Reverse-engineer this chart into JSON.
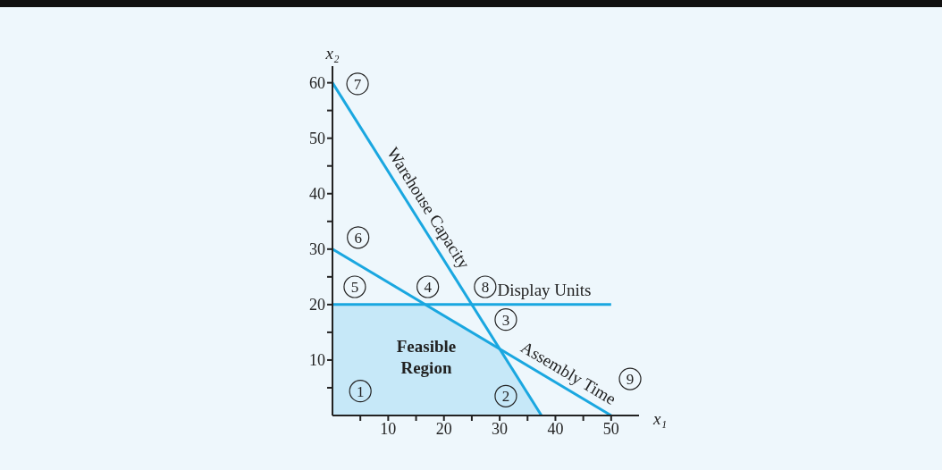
{
  "chart_data": {
    "type": "line",
    "xlabel": "x₁",
    "ylabel": "x₂",
    "xlim": [
      0,
      55
    ],
    "ylim": [
      0,
      63
    ],
    "xticks": [
      {
        "value": 5,
        "label": null
      },
      10,
      {
        "value": 15,
        "label": null
      },
      20,
      {
        "value": 25,
        "label": null
      },
      30,
      {
        "value": 35,
        "label": null
      },
      40,
      {
        "value": 45,
        "label": null
      },
      50
    ],
    "yticks": [
      {
        "value": 5,
        "label": null
      },
      10,
      {
        "value": 15,
        "label": null
      },
      20,
      {
        "value": 25,
        "label": null
      },
      30,
      {
        "value": 35,
        "label": null
      },
      40,
      {
        "value": 45,
        "label": null
      },
      50,
      {
        "value": 55,
        "label": null
      },
      60
    ],
    "marker": "none",
    "line_style": "solid",
    "series": [
      {
        "name": "Feasible Region",
        "type": "area",
        "color": "#c6e8f8",
        "x": [
          0,
          16.67,
          30,
          37.5
        ],
        "values": [
          20,
          20,
          12,
          0
        ]
      },
      {
        "name": "Warehouse Capacity",
        "color": "#1aa7e0",
        "x": [
          0,
          37.5
        ],
        "values": [
          60,
          0
        ]
      },
      {
        "name": "Assembly Time",
        "color": "#1aa7e0",
        "x": [
          0,
          50
        ],
        "values": [
          30,
          0
        ]
      },
      {
        "name": "Display Units",
        "color": "#1aa7e0",
        "x": [
          0,
          50
        ],
        "values": [
          20,
          20
        ]
      }
    ],
    "annotations": [
      {
        "text": "1",
        "x": 5,
        "y": 4.4
      },
      {
        "text": "2",
        "x": 31.1,
        "y": 3.5
      },
      {
        "text": "3",
        "x": 31.1,
        "y": 17.3
      },
      {
        "text": "4",
        "x": 17.1,
        "y": 23.2
      },
      {
        "text": "5",
        "x": 4,
        "y": 23.2
      },
      {
        "text": "6",
        "x": 4.6,
        "y": 32.1
      },
      {
        "text": "7",
        "x": 4.5,
        "y": 59.8
      },
      {
        "text": "8",
        "x": 27.4,
        "y": 23.2
      },
      {
        "text": "9",
        "x": 53.4,
        "y": 6.6
      }
    ]
  }
}
